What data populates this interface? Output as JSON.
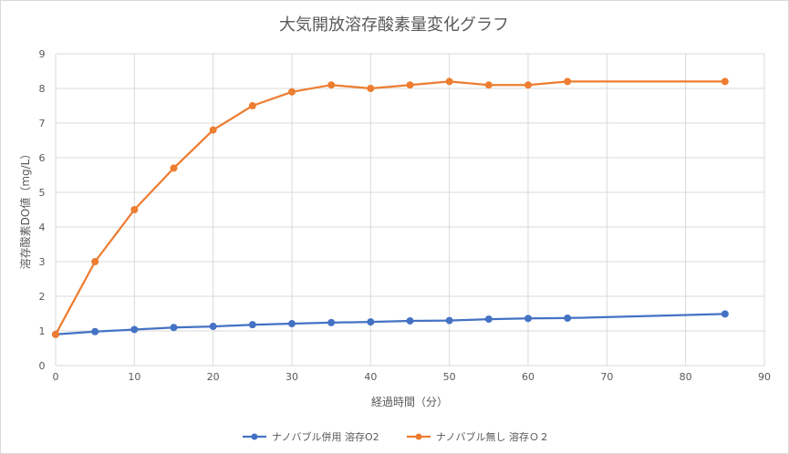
{
  "chart_data": {
    "type": "line",
    "title": "大気開放溶存酸素量変化グラフ",
    "xlabel": "経過時間（分）",
    "ylabel": "溶存酸素DO値（mg/L）",
    "xlim": [
      0,
      90
    ],
    "ylim": [
      0,
      9
    ],
    "xticks": [
      "0",
      "10",
      "20",
      "30",
      "40",
      "50",
      "60",
      "70",
      "80",
      "90"
    ],
    "yticks": [
      "0",
      "1",
      "2",
      "3",
      "4",
      "5",
      "6",
      "7",
      "8",
      "9"
    ],
    "grid": true,
    "legend_position": "bottom",
    "series": [
      {
        "name": "ナノバブル併用 溶存O2",
        "color": "#4472c4",
        "x": [
          0,
          5,
          10,
          15,
          20,
          25,
          30,
          35,
          40,
          45,
          50,
          55,
          60,
          65,
          85
        ],
        "y": [
          0.9,
          0.98,
          1.04,
          1.1,
          1.13,
          1.18,
          1.21,
          1.24,
          1.26,
          1.29,
          1.3,
          1.34,
          1.36,
          1.37,
          1.49
        ]
      },
      {
        "name": "ナノバブル無し 溶存Ｏ２",
        "color": "#ed7d31",
        "x": [
          0,
          5,
          10,
          15,
          20,
          25,
          30,
          35,
          40,
          45,
          50,
          55,
          60,
          65,
          85
        ],
        "y": [
          0.9,
          3.0,
          4.5,
          5.7,
          6.8,
          7.5,
          7.9,
          8.1,
          8.0,
          8.1,
          8.2,
          8.1,
          8.1,
          8.2,
          8.2
        ]
      }
    ]
  }
}
